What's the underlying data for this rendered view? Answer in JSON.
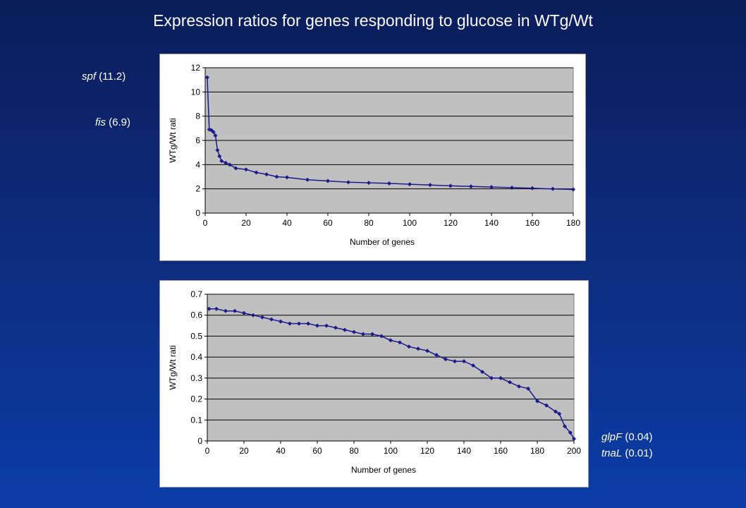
{
  "title": "Expression ratios for genes responding to glucose in WTg/Wt",
  "annotations": {
    "spf": {
      "gene": "spf",
      "value": "(11.2)"
    },
    "fis": {
      "gene": "fis",
      "value": "(6.9)"
    },
    "glpF": {
      "gene": "glpF",
      "value": "(0.04)"
    },
    "tnaL": {
      "gene": "tnaL",
      "value": "(0.01)"
    }
  },
  "colors": {
    "series": "#1a1a8c",
    "plot_bg": "#c0c0c0",
    "chart_bg": "#ffffff",
    "gridline": "#000000"
  },
  "chart_data": [
    {
      "type": "line",
      "xlabel": "Number of genes",
      "ylabel": "WTg/Wt rati",
      "xlim": [
        0,
        180
      ],
      "ylim": [
        0,
        12
      ],
      "xticks": [
        0,
        20,
        40,
        60,
        80,
        100,
        120,
        140,
        160,
        180
      ],
      "yticks": [
        0,
        2,
        4,
        6,
        8,
        10,
        12
      ],
      "grid": "horizontal",
      "series": [
        {
          "x": [
            1,
            2,
            3,
            4,
            5,
            6,
            7,
            8,
            10,
            12,
            15,
            20,
            25,
            30,
            35,
            40,
            50,
            60,
            70,
            80,
            90,
            100,
            110,
            120,
            130,
            140,
            150,
            160,
            170,
            180
          ],
          "y": [
            11.2,
            6.9,
            6.85,
            6.7,
            6.4,
            5.2,
            4.7,
            4.3,
            4.15,
            4.0,
            3.7,
            3.6,
            3.35,
            3.2,
            3.0,
            2.95,
            2.75,
            2.65,
            2.55,
            2.5,
            2.45,
            2.38,
            2.32,
            2.25,
            2.2,
            2.15,
            2.1,
            2.05,
            2.0,
            1.95
          ]
        }
      ]
    },
    {
      "type": "line",
      "xlabel": "Number of genes",
      "ylabel": "WTg/Wt rati",
      "xlim": [
        0,
        200
      ],
      "ylim": [
        0,
        0.7
      ],
      "xticks": [
        0,
        20,
        40,
        60,
        80,
        100,
        120,
        140,
        160,
        180,
        200
      ],
      "yticks": [
        0,
        0.1,
        0.2,
        0.3,
        0.4,
        0.5,
        0.6,
        0.7
      ],
      "grid": "horizontal",
      "series": [
        {
          "x": [
            1,
            5,
            10,
            15,
            20,
            25,
            30,
            35,
            40,
            45,
            50,
            55,
            60,
            65,
            70,
            75,
            80,
            85,
            90,
            95,
            100,
            105,
            110,
            115,
            120,
            125,
            130,
            135,
            140,
            145,
            150,
            155,
            160,
            165,
            170,
            175,
            180,
            185,
            190,
            192,
            195,
            198,
            200
          ],
          "y": [
            0.63,
            0.63,
            0.62,
            0.62,
            0.61,
            0.6,
            0.59,
            0.58,
            0.57,
            0.56,
            0.56,
            0.56,
            0.55,
            0.55,
            0.54,
            0.53,
            0.52,
            0.51,
            0.51,
            0.5,
            0.48,
            0.47,
            0.45,
            0.44,
            0.43,
            0.41,
            0.39,
            0.38,
            0.38,
            0.36,
            0.33,
            0.3,
            0.3,
            0.28,
            0.26,
            0.25,
            0.19,
            0.17,
            0.14,
            0.13,
            0.07,
            0.04,
            0.01
          ]
        }
      ]
    }
  ]
}
